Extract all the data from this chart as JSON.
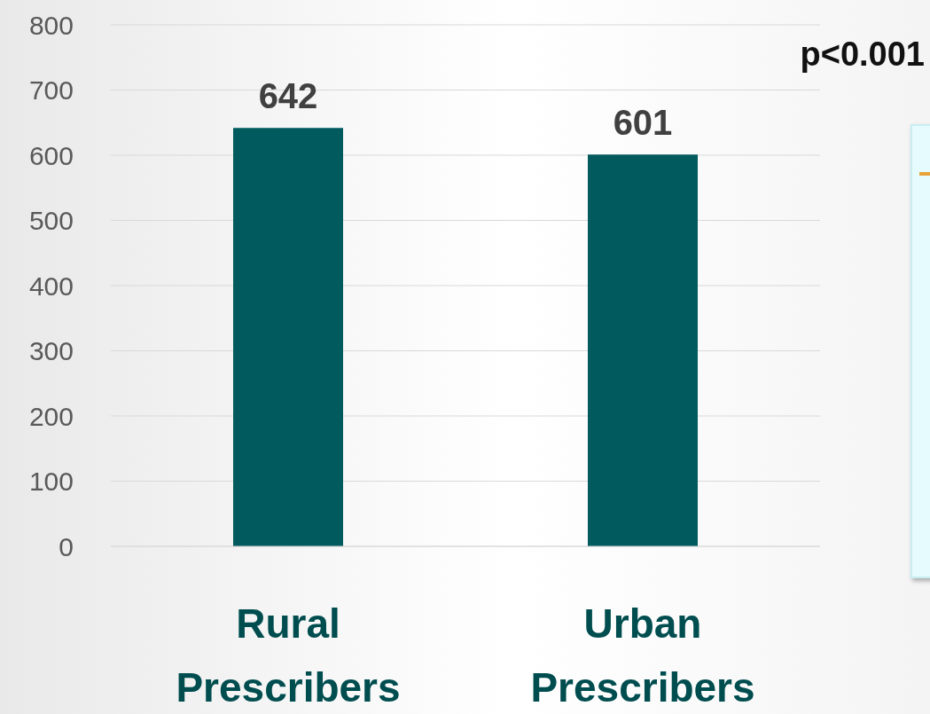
{
  "chart_data": {
    "type": "bar",
    "categories": [
      "Rural Prescribers",
      "Urban Prescribers"
    ],
    "values": [
      642,
      601
    ],
    "color": "#005a5e",
    "data_labels": true,
    "ylim": [
      0,
      800
    ],
    "yticks": [
      0,
      100,
      200,
      300,
      400,
      500,
      600,
      700,
      800
    ],
    "grid": "y",
    "annotations": [
      "p<0.001"
    ]
  }
}
